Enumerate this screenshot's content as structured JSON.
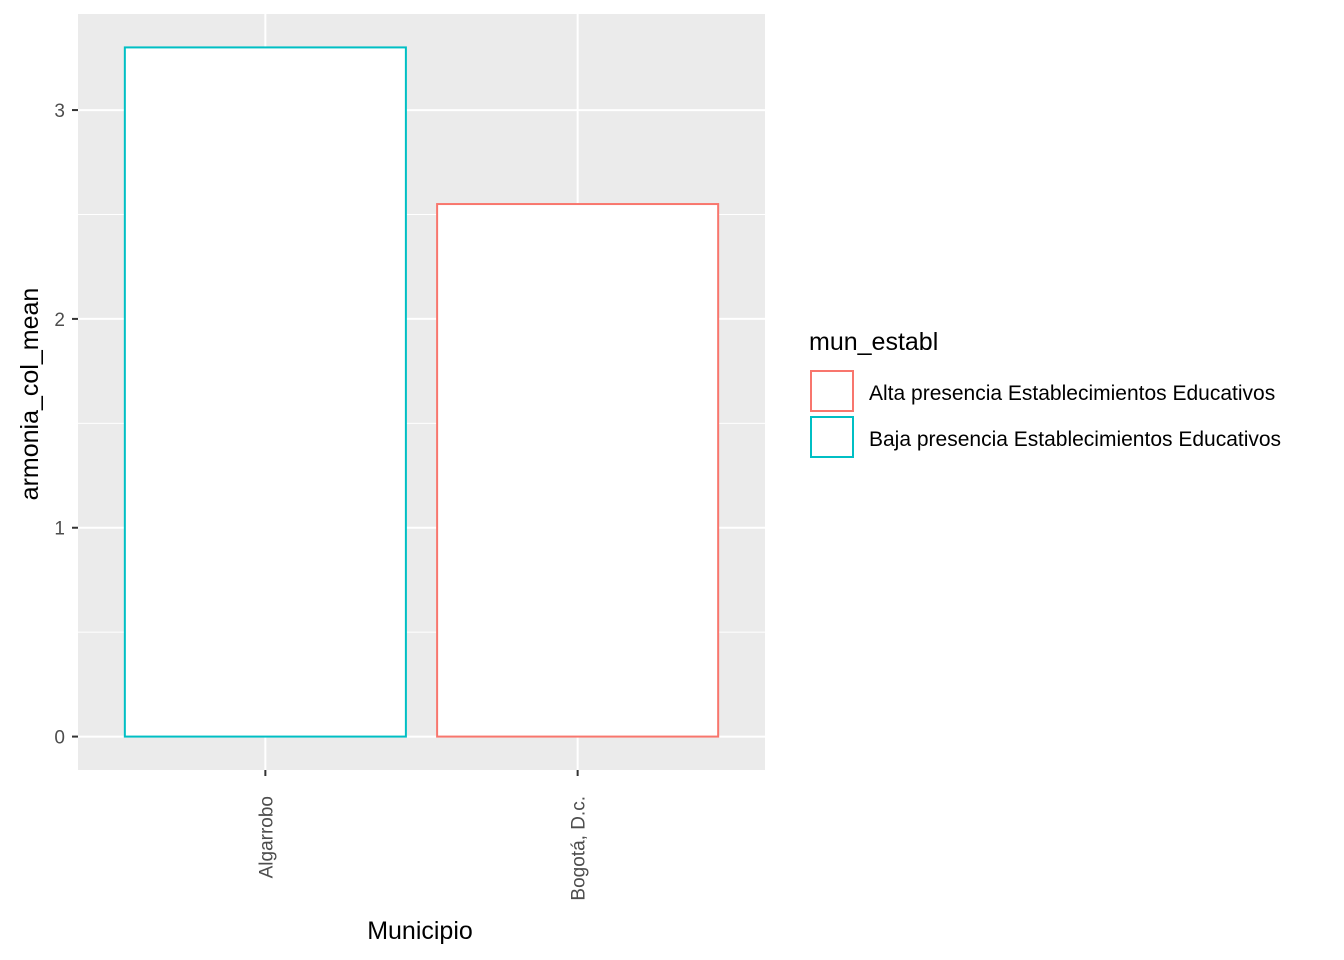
{
  "chart_data": {
    "type": "bar",
    "categories": [
      "Algarrobo",
      "Bogotá, D.c."
    ],
    "series": [
      {
        "name": "Baja presencia Establecimientos Educativos",
        "color": "#00bfc4",
        "values": [
          3.3,
          null
        ]
      },
      {
        "name": "Alta presencia Establecimientos Educativos",
        "color": "#f8766d",
        "values": [
          null,
          2.55
        ]
      }
    ],
    "xlabel": "Municipio",
    "ylabel": "armonia_col_mean",
    "ylim": [
      -0.16,
      3.46
    ],
    "yticks": [
      0,
      1,
      2,
      3
    ],
    "grid": true,
    "bar_fill": "#ffffff",
    "panel_background": "#ebebeb",
    "legend": {
      "title": "mun_establ",
      "position": "right",
      "entries": [
        {
          "label": "Alta presencia Establecimientos Educativos",
          "color": "#f8766d"
        },
        {
          "label": "Baja presencia Establecimientos Educativos",
          "color": "#00bfc4"
        }
      ]
    }
  }
}
